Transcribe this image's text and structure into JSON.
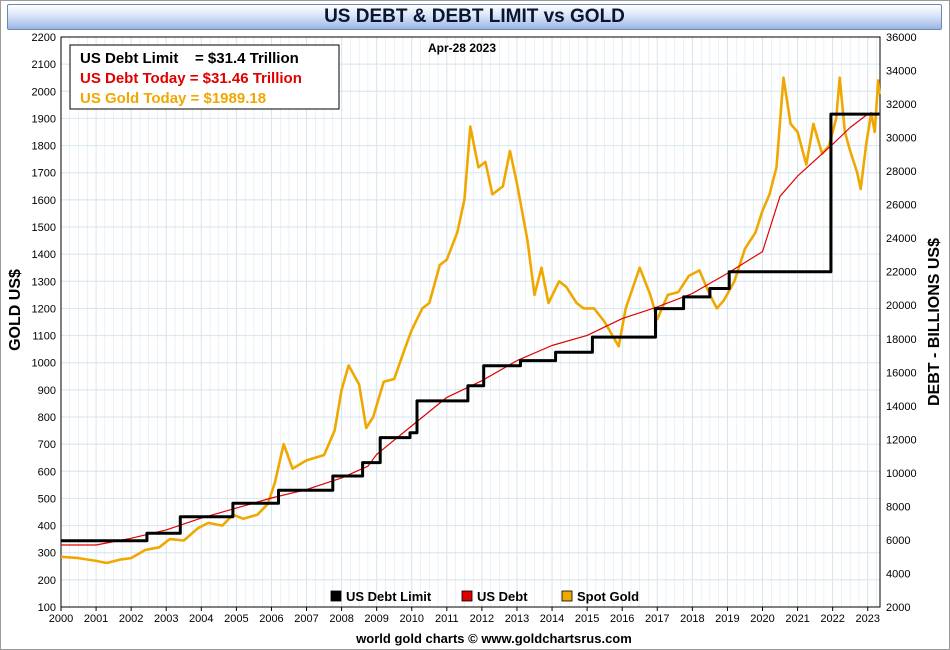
{
  "title": "US DEBT & DEBT LIMIT vs GOLD",
  "date_label": "Apr-28  2023",
  "info_box": [
    {
      "label": "US Debt Limit    = $31.4 Trillion",
      "color": "#000000"
    },
    {
      "label": "US Debt Today = $31.46 Trillion",
      "color": "#e00000"
    },
    {
      "label": "US Gold Today = $1989.18",
      "color": "#f0a800"
    }
  ],
  "footer": "world gold charts © www.goldchartsrus.com",
  "colors": {
    "debt_limit": "#000000",
    "debt": "#e00000",
    "gold": "#f0a800",
    "grid": "#d6e4ee",
    "background": "#ffffff"
  },
  "chart_data": {
    "type": "line",
    "title": "US DEBT & DEBT LIMIT vs GOLD",
    "xlabel": "",
    "ylabel": "GOLD US$",
    "y2label": "DEBT - BILLIONS US$",
    "x_tick_labels": [
      "2000",
      "2001",
      "2002",
      "2003",
      "2004",
      "2005",
      "2006",
      "2007",
      "2008",
      "2009",
      "2010",
      "2011",
      "2012",
      "2013",
      "2014",
      "2015",
      "2016",
      "2017",
      "2018",
      "2019",
      "2020",
      "2021",
      "2022",
      "2023"
    ],
    "xlim": [
      2000.0,
      2023.35
    ],
    "ylim": [
      100,
      2200
    ],
    "y_ticks": [
      100,
      200,
      300,
      400,
      500,
      600,
      700,
      800,
      900,
      1000,
      1100,
      1200,
      1300,
      1400,
      1500,
      1600,
      1700,
      1800,
      1900,
      2000,
      2100,
      2200
    ],
    "y2lim": [
      2000,
      36000
    ],
    "y2_ticks": [
      2000,
      4000,
      6000,
      8000,
      10000,
      12000,
      14000,
      16000,
      18000,
      20000,
      22000,
      24000,
      26000,
      28000,
      30000,
      32000,
      34000,
      36000
    ],
    "grid": true,
    "legend_position": "bottom-center",
    "legend": [
      "US Debt Limit",
      "US Debt",
      "Spot Gold"
    ],
    "series": [
      {
        "name": "Spot Gold",
        "axis": "left",
        "points": [
          [
            2000.0,
            285
          ],
          [
            2000.5,
            280
          ],
          [
            2001.0,
            270
          ],
          [
            2001.3,
            262
          ],
          [
            2001.7,
            275
          ],
          [
            2002.0,
            280
          ],
          [
            2002.4,
            310
          ],
          [
            2002.8,
            320
          ],
          [
            2003.1,
            350
          ],
          [
            2003.5,
            345
          ],
          [
            2003.9,
            390
          ],
          [
            2004.2,
            410
          ],
          [
            2004.6,
            400
          ],
          [
            2004.9,
            440
          ],
          [
            2005.2,
            425
          ],
          [
            2005.6,
            440
          ],
          [
            2005.9,
            480
          ],
          [
            2006.1,
            560
          ],
          [
            2006.35,
            700
          ],
          [
            2006.6,
            610
          ],
          [
            2007.0,
            640
          ],
          [
            2007.5,
            660
          ],
          [
            2007.8,
            750
          ],
          [
            2008.0,
            900
          ],
          [
            2008.2,
            990
          ],
          [
            2008.5,
            920
          ],
          [
            2008.7,
            760
          ],
          [
            2008.9,
            800
          ],
          [
            2009.2,
            930
          ],
          [
            2009.5,
            940
          ],
          [
            2009.8,
            1050
          ],
          [
            2010.0,
            1120
          ],
          [
            2010.3,
            1200
          ],
          [
            2010.5,
            1220
          ],
          [
            2010.8,
            1360
          ],
          [
            2011.0,
            1380
          ],
          [
            2011.3,
            1480
          ],
          [
            2011.5,
            1600
          ],
          [
            2011.67,
            1870
          ],
          [
            2011.9,
            1720
          ],
          [
            2012.1,
            1740
          ],
          [
            2012.3,
            1620
          ],
          [
            2012.6,
            1650
          ],
          [
            2012.8,
            1780
          ],
          [
            2013.0,
            1660
          ],
          [
            2013.3,
            1450
          ],
          [
            2013.5,
            1250
          ],
          [
            2013.7,
            1350
          ],
          [
            2013.9,
            1220
          ],
          [
            2014.2,
            1300
          ],
          [
            2014.4,
            1280
          ],
          [
            2014.7,
            1220
          ],
          [
            2014.9,
            1200
          ],
          [
            2015.2,
            1200
          ],
          [
            2015.5,
            1150
          ],
          [
            2015.9,
            1060
          ],
          [
            2016.1,
            1200
          ],
          [
            2016.5,
            1350
          ],
          [
            2016.8,
            1250
          ],
          [
            2017.0,
            1160
          ],
          [
            2017.3,
            1250
          ],
          [
            2017.6,
            1260
          ],
          [
            2017.9,
            1320
          ],
          [
            2018.2,
            1340
          ],
          [
            2018.5,
            1250
          ],
          [
            2018.7,
            1200
          ],
          [
            2018.9,
            1230
          ],
          [
            2019.2,
            1300
          ],
          [
            2019.5,
            1420
          ],
          [
            2019.8,
            1480
          ],
          [
            2020.0,
            1560
          ],
          [
            2020.2,
            1620
          ],
          [
            2020.4,
            1720
          ],
          [
            2020.6,
            2050
          ],
          [
            2020.8,
            1880
          ],
          [
            2021.0,
            1850
          ],
          [
            2021.25,
            1730
          ],
          [
            2021.45,
            1880
          ],
          [
            2021.7,
            1770
          ],
          [
            2021.9,
            1800
          ],
          [
            2022.1,
            1900
          ],
          [
            2022.2,
            2050
          ],
          [
            2022.35,
            1850
          ],
          [
            2022.5,
            1780
          ],
          [
            2022.7,
            1700
          ],
          [
            2022.8,
            1640
          ],
          [
            2022.95,
            1800
          ],
          [
            2023.1,
            1920
          ],
          [
            2023.2,
            1850
          ],
          [
            2023.3,
            2040
          ],
          [
            2023.33,
            1990
          ]
        ]
      },
      {
        "name": "US Debt",
        "axis": "right",
        "points": [
          [
            2000.0,
            5700
          ],
          [
            2001.0,
            5700
          ],
          [
            2002.0,
            6100
          ],
          [
            2003.0,
            6600
          ],
          [
            2004.0,
            7300
          ],
          [
            2005.0,
            7900
          ],
          [
            2006.0,
            8500
          ],
          [
            2007.0,
            9000
          ],
          [
            2008.0,
            9700
          ],
          [
            2008.75,
            10400
          ],
          [
            2009.0,
            11100
          ],
          [
            2010.0,
            12800
          ],
          [
            2011.0,
            14500
          ],
          [
            2012.0,
            15500
          ],
          [
            2013.0,
            16700
          ],
          [
            2014.0,
            17600
          ],
          [
            2015.0,
            18200
          ],
          [
            2016.0,
            19200
          ],
          [
            2017.0,
            19900
          ],
          [
            2018.0,
            20700
          ],
          [
            2019.0,
            21900
          ],
          [
            2020.0,
            23200
          ],
          [
            2020.5,
            26500
          ],
          [
            2021.0,
            27700
          ],
          [
            2022.0,
            29600
          ],
          [
            2022.5,
            30600
          ],
          [
            2023.0,
            31400
          ],
          [
            2023.33,
            31460
          ]
        ]
      },
      {
        "name": "US Debt Limit",
        "axis": "right",
        "step": true,
        "points": [
          [
            2000.0,
            5950
          ],
          [
            2002.45,
            6400
          ],
          [
            2003.4,
            7384
          ],
          [
            2004.9,
            8184
          ],
          [
            2006.2,
            8965
          ],
          [
            2007.75,
            9815
          ],
          [
            2008.6,
            10615
          ],
          [
            2009.1,
            12104
          ],
          [
            2009.95,
            12394
          ],
          [
            2010.15,
            14294
          ],
          [
            2011.6,
            15194
          ],
          [
            2012.05,
            16394
          ],
          [
            2013.1,
            16700
          ],
          [
            2014.1,
            17200
          ],
          [
            2015.15,
            18100
          ],
          [
            2016.95,
            19800
          ],
          [
            2017.75,
            20500
          ],
          [
            2018.5,
            21000
          ],
          [
            2019.05,
            22000
          ],
          [
            2021.95,
            31400
          ],
          [
            2023.33,
            31400
          ]
        ]
      }
    ]
  }
}
